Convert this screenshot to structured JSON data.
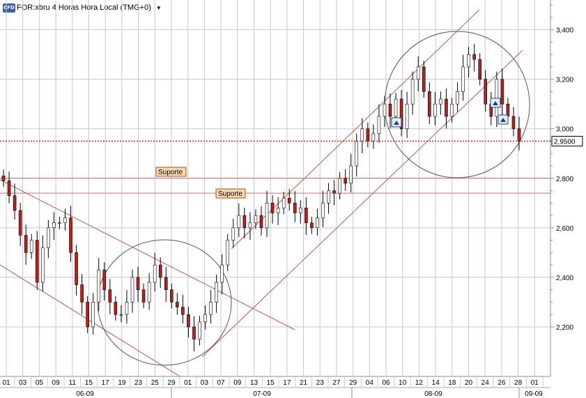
{
  "header": {
    "logo_text": "CFD",
    "title": "FOR:xbru 4 Horas Hora Local (TMG+0)",
    "dropdown_icon": "caret-down-icon"
  },
  "chart_data": {
    "type": "candlestick",
    "title": "FOR:xbru 4 Horas Hora Local (TMG+0)",
    "ylim": [
      2.0,
      3.52
    ],
    "yticks": [
      "2,200",
      "2,400",
      "2,600",
      "2,800",
      "3,000",
      "3,200",
      "3,400"
    ],
    "ytick_values": [
      2.2,
      2.4,
      2.6,
      2.8,
      3.0,
      3.2,
      3.4
    ],
    "x_day_labels": [
      "01",
      "03",
      "05",
      "09",
      "11",
      "15",
      "17",
      "19",
      "23",
      "25",
      "29",
      "01",
      "03",
      "07",
      "09",
      "13",
      "15",
      "17",
      "21",
      "23",
      "27",
      "29",
      "04",
      "06",
      "10",
      "12",
      "14",
      "18",
      "20",
      "24",
      "26",
      "28",
      "01"
    ],
    "x_month_labels": [
      "06-09",
      "07-09",
      "08-09",
      "09-09"
    ],
    "current_price": {
      "value": 2.95,
      "label": "2,9500",
      "color": "#cc0000"
    },
    "support_levels": [
      {
        "value": 2.8,
        "label": "Suporte"
      },
      {
        "value": 2.74,
        "label": "Suporte"
      }
    ],
    "annotations": [
      "circle-bottom",
      "circle-top",
      "down-channel",
      "up-channel",
      "signal-markers"
    ],
    "close_path": [
      2.79,
      2.73,
      2.67,
      2.57,
      2.5,
      2.55,
      2.38,
      2.52,
      2.6,
      2.62,
      2.62,
      2.64,
      2.5,
      2.37,
      2.3,
      2.2,
      2.3,
      2.43,
      2.35,
      2.3,
      2.25,
      2.25,
      2.3,
      2.4,
      2.35,
      2.3,
      2.38,
      2.45,
      2.4,
      2.35,
      2.3,
      2.28,
      2.25,
      2.2,
      2.15,
      2.22,
      2.25,
      2.3,
      2.38,
      2.45,
      2.55,
      2.6,
      2.65,
      2.6,
      2.62,
      2.65,
      2.6,
      2.7,
      2.66,
      2.68,
      2.72,
      2.7,
      2.66,
      2.68,
      2.62,
      2.6,
      2.64,
      2.7,
      2.75,
      2.74,
      2.8,
      2.78,
      2.85,
      2.95,
      3.0,
      2.95,
      2.98,
      3.05,
      3.1,
      3.05,
      3.12,
      3.0,
      3.1,
      3.2,
      3.25,
      3.15,
      3.05,
      3.1,
      3.12,
      3.05,
      3.1,
      3.15,
      3.25,
      3.3,
      3.28,
      3.2,
      3.1,
      3.05,
      3.2,
      3.1,
      3.05,
      3.0,
      2.95
    ],
    "colors": {
      "up": "#ffffff",
      "down": "#b22222",
      "wick": "#000000",
      "grid": "#c8c8c8"
    }
  }
}
